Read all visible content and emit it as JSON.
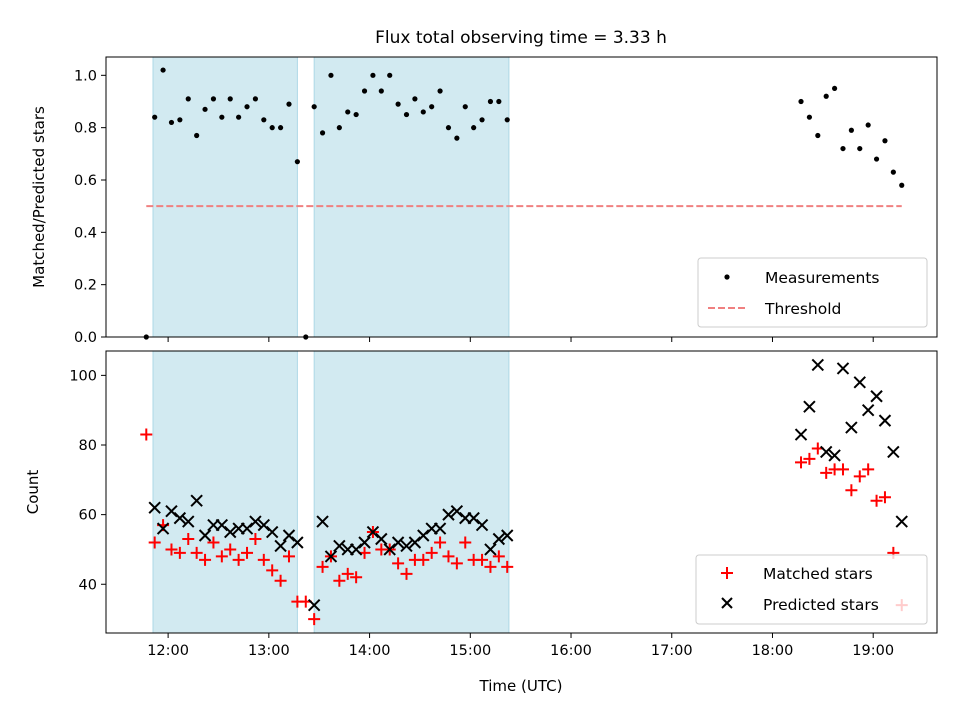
{
  "title": "Flux total observing time = 3.33 h",
  "xlabel": "Time (UTC)",
  "colors": {
    "shade": "#add8e6",
    "threshold": "#f08080",
    "measurement": "#000000",
    "matched": "#ff0000",
    "predicted": "#000000"
  },
  "chart_data": [
    {
      "type": "scatter",
      "ylabel": "Matched/Predicted stars",
      "xlim": [
        "11:23",
        "19:38"
      ],
      "ylim": [
        0,
        1.07
      ],
      "xticks": [
        "12:00",
        "13:00",
        "14:00",
        "15:00",
        "16:00",
        "17:00",
        "18:00",
        "19:00"
      ],
      "yticks": [
        "0.0",
        "0.2",
        "0.4",
        "0.6",
        "0.8",
        "1.0"
      ],
      "shaded_intervals": [
        [
          "11:51",
          "13:17"
        ],
        [
          "13:27",
          "15:23"
        ]
      ],
      "threshold": {
        "name": "Threshold",
        "value": 0.5,
        "x": [
          "11:47",
          "19:17"
        ]
      },
      "legend": {
        "position": "lower right",
        "entries": [
          "Measurements",
          "Threshold"
        ]
      },
      "series": [
        {
          "name": "Measurements",
          "marker": "dot",
          "points": [
            [
              "11:47",
              0.0
            ],
            [
              "11:52",
              0.84
            ],
            [
              "11:57",
              1.02
            ],
            [
              "12:02",
              0.82
            ],
            [
              "12:07",
              0.83
            ],
            [
              "12:12",
              0.91
            ],
            [
              "12:17",
              0.77
            ],
            [
              "12:22",
              0.87
            ],
            [
              "12:27",
              0.91
            ],
            [
              "12:32",
              0.84
            ],
            [
              "12:37",
              0.91
            ],
            [
              "12:42",
              0.84
            ],
            [
              "12:47",
              0.88
            ],
            [
              "12:52",
              0.91
            ],
            [
              "12:57",
              0.83
            ],
            [
              "13:02",
              0.8
            ],
            [
              "13:07",
              0.8
            ],
            [
              "13:12",
              0.89
            ],
            [
              "13:17",
              0.67
            ],
            [
              "13:22",
              0.0
            ],
            [
              "13:27",
              0.88
            ],
            [
              "13:32",
              0.78
            ],
            [
              "13:37",
              1.0
            ],
            [
              "13:42",
              0.8
            ],
            [
              "13:47",
              0.86
            ],
            [
              "13:52",
              0.85
            ],
            [
              "13:57",
              0.94
            ],
            [
              "14:02",
              1.0
            ],
            [
              "14:07",
              0.94
            ],
            [
              "14:12",
              1.0
            ],
            [
              "14:17",
              0.89
            ],
            [
              "14:22",
              0.85
            ],
            [
              "14:27",
              0.91
            ],
            [
              "14:32",
              0.86
            ],
            [
              "14:37",
              0.88
            ],
            [
              "14:42",
              0.94
            ],
            [
              "14:47",
              0.8
            ],
            [
              "14:52",
              0.76
            ],
            [
              "14:57",
              0.88
            ],
            [
              "15:02",
              0.8
            ],
            [
              "15:07",
              0.83
            ],
            [
              "15:12",
              0.9
            ],
            [
              "15:17",
              0.9
            ],
            [
              "15:22",
              0.83
            ],
            [
              "18:17",
              0.9
            ],
            [
              "18:22",
              0.84
            ],
            [
              "18:27",
              0.77
            ],
            [
              "18:32",
              0.92
            ],
            [
              "18:37",
              0.95
            ],
            [
              "18:42",
              0.72
            ],
            [
              "18:47",
              0.79
            ],
            [
              "18:52",
              0.72
            ],
            [
              "18:57",
              0.81
            ],
            [
              "19:02",
              0.68
            ],
            [
              "19:07",
              0.75
            ],
            [
              "19:12",
              0.63
            ],
            [
              "19:17",
              0.58
            ]
          ]
        }
      ]
    },
    {
      "type": "scatter",
      "ylabel": "Count",
      "xlim": [
        "11:23",
        "19:38"
      ],
      "ylim": [
        26,
        107
      ],
      "xticks": [
        "12:00",
        "13:00",
        "14:00",
        "15:00",
        "16:00",
        "17:00",
        "18:00",
        "19:00"
      ],
      "yticks": [
        "40",
        "60",
        "80",
        "100"
      ],
      "shaded_intervals": [
        [
          "11:51",
          "13:17"
        ],
        [
          "13:27",
          "15:23"
        ]
      ],
      "legend": {
        "position": "lower right",
        "entries": [
          "Matched stars",
          "Predicted stars"
        ]
      },
      "series": [
        {
          "name": "Matched stars",
          "marker": "plus",
          "points": [
            [
              "11:47",
              83
            ],
            [
              "11:52",
              52
            ],
            [
              "11:57",
              57
            ],
            [
              "12:02",
              50
            ],
            [
              "12:07",
              49
            ],
            [
              "12:12",
              53
            ],
            [
              "12:17",
              49
            ],
            [
              "12:22",
              47
            ],
            [
              "12:27",
              52
            ],
            [
              "12:32",
              48
            ],
            [
              "12:37",
              50
            ],
            [
              "12:42",
              47
            ],
            [
              "12:47",
              49
            ],
            [
              "12:52",
              53
            ],
            [
              "12:57",
              47
            ],
            [
              "13:02",
              44
            ],
            [
              "13:07",
              41
            ],
            [
              "13:12",
              48
            ],
            [
              "13:17",
              35
            ],
            [
              "13:22",
              35
            ],
            [
              "13:27",
              30
            ],
            [
              "13:32",
              45
            ],
            [
              "13:37",
              48
            ],
            [
              "13:42",
              41
            ],
            [
              "13:47",
              43
            ],
            [
              "13:52",
              42
            ],
            [
              "13:57",
              49
            ],
            [
              "14:02",
              55
            ],
            [
              "14:07",
              50
            ],
            [
              "14:12",
              50
            ],
            [
              "14:17",
              46
            ],
            [
              "14:22",
              43
            ],
            [
              "14:27",
              47
            ],
            [
              "14:32",
              47
            ],
            [
              "14:37",
              49
            ],
            [
              "14:42",
              52
            ],
            [
              "14:47",
              48
            ],
            [
              "14:52",
              46
            ],
            [
              "14:57",
              52
            ],
            [
              "15:02",
              47
            ],
            [
              "15:07",
              47
            ],
            [
              "15:12",
              45
            ],
            [
              "15:17",
              48
            ],
            [
              "15:22",
              45
            ],
            [
              "18:17",
              75
            ],
            [
              "18:22",
              76
            ],
            [
              "18:27",
              79
            ],
            [
              "18:32",
              72
            ],
            [
              "18:37",
              73
            ],
            [
              "18:42",
              73
            ],
            [
              "18:47",
              67
            ],
            [
              "18:52",
              71
            ],
            [
              "18:57",
              73
            ],
            [
              "19:02",
              64
            ],
            [
              "19:07",
              65
            ],
            [
              "19:12",
              49
            ],
            [
              "19:17",
              34
            ]
          ]
        },
        {
          "name": "Predicted stars",
          "marker": "x",
          "points": [
            [
              "11:52",
              62
            ],
            [
              "11:57",
              56
            ],
            [
              "12:02",
              61
            ],
            [
              "12:07",
              59
            ],
            [
              "12:12",
              58
            ],
            [
              "12:17",
              64
            ],
            [
              "12:22",
              54
            ],
            [
              "12:27",
              57
            ],
            [
              "12:32",
              57
            ],
            [
              "12:37",
              55
            ],
            [
              "12:42",
              56
            ],
            [
              "12:47",
              56
            ],
            [
              "12:52",
              58
            ],
            [
              "12:57",
              57
            ],
            [
              "13:02",
              55
            ],
            [
              "13:07",
              51
            ],
            [
              "13:12",
              54
            ],
            [
              "13:17",
              52
            ],
            [
              "13:27",
              34
            ],
            [
              "13:32",
              58
            ],
            [
              "13:37",
              48
            ],
            [
              "13:42",
              51
            ],
            [
              "13:47",
              50
            ],
            [
              "13:52",
              50
            ],
            [
              "13:57",
              52
            ],
            [
              "14:02",
              55
            ],
            [
              "14:07",
              53
            ],
            [
              "14:12",
              50
            ],
            [
              "14:17",
              52
            ],
            [
              "14:22",
              51
            ],
            [
              "14:27",
              52
            ],
            [
              "14:32",
              54
            ],
            [
              "14:37",
              56
            ],
            [
              "14:42",
              56
            ],
            [
              "14:47",
              60
            ],
            [
              "14:52",
              61
            ],
            [
              "14:57",
              59
            ],
            [
              "15:02",
              59
            ],
            [
              "15:07",
              57
            ],
            [
              "15:12",
              50
            ],
            [
              "15:17",
              53
            ],
            [
              "15:22",
              54
            ],
            [
              "18:17",
              83
            ],
            [
              "18:22",
              91
            ],
            [
              "18:27",
              103
            ],
            [
              "18:32",
              78
            ],
            [
              "18:37",
              77
            ],
            [
              "18:42",
              102
            ],
            [
              "18:47",
              85
            ],
            [
              "18:52",
              98
            ],
            [
              "18:57",
              90
            ],
            [
              "19:02",
              94
            ],
            [
              "19:07",
              87
            ],
            [
              "19:12",
              78
            ],
            [
              "19:17",
              58
            ]
          ]
        }
      ]
    }
  ]
}
